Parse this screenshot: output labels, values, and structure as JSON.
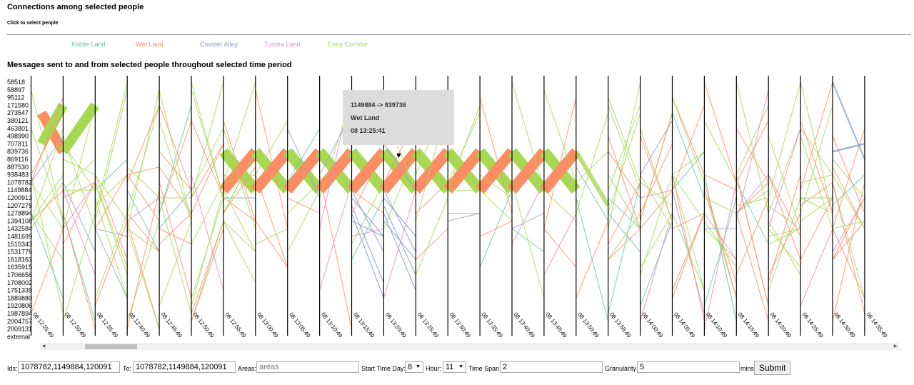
{
  "header": {
    "title": "Connections among selected people",
    "subtitle": "Click to select people",
    "chart_title": "Messages sent to and from selected people throughout selected time period"
  },
  "legend": [
    {
      "label": "Kiddie Land",
      "color": "#66c2a5"
    },
    {
      "label": "Wet Land",
      "color": "#fc8d62"
    },
    {
      "label": "Coaster Alley",
      "color": "#8da0cb"
    },
    {
      "label": "Tundra Land",
      "color": "#e78ac3"
    },
    {
      "label": "Entry Corridor",
      "color": "#a6d854"
    }
  ],
  "tooltip": {
    "connection": "1149884 -> 839736",
    "area": "Wet Land",
    "time": "08 13:25:41"
  },
  "chart_data": {
    "type": "parallel-time-axes",
    "title": "Messages sent to and from selected people throughout selected time period",
    "y_categories": [
      "58518",
      "58897",
      "95112",
      "171580",
      "273547",
      "380121",
      "463801",
      "498990",
      "707811",
      "839736",
      "869116",
      "887530",
      "938483",
      "1078782",
      "1149884",
      "1200913",
      "1207278",
      "1278894",
      "1394108",
      "1432584",
      "1481699",
      "1515343",
      "1531776",
      "1618163",
      "1635915",
      "1706656",
      "1708002",
      "1751339",
      "1889880",
      "1920806",
      "1987894",
      "2004757",
      "2009131",
      "external"
    ],
    "time_axes": [
      "08 12:25:49",
      "08 12:30:49",
      "08 12:35:49",
      "08 12:40:49",
      "08 12:45:49",
      "08 12:50:49",
      "08 12:55:49",
      "08 13:00:49",
      "08 13:05:49",
      "08 13:10:49",
      "08 13:15:49",
      "08 13:20:49",
      "08 13:25:49",
      "08 13:30:49",
      "08 13:35:49",
      "08 13:40:49",
      "08 13:45:49",
      "08 13:50:49",
      "08 13:55:49",
      "08 14:00:49",
      "08 14:05:49",
      "08 14:10:49",
      "08 14:15:49",
      "08 14:20:49",
      "08 14:25:49",
      "08 14:30:49",
      "08 14:35:49"
    ],
    "series": [
      {
        "name": "Wet Land",
        "color": "#fc8d62"
      },
      {
        "name": "Entry Corridor",
        "color": "#a6d854"
      },
      {
        "name": "Kiddie Land",
        "color": "#66c2a5"
      },
      {
        "name": "Coaster Alley",
        "color": "#8da0cb"
      },
      {
        "name": "Tundra Land",
        "color": "#e78ac3"
      }
    ]
  },
  "form": {
    "ids_label": "Ids:",
    "ids_value": "1078782,1149884,120091",
    "to_label": "To:",
    "to_value": "1078782,1149884,120091",
    "areas_label": "Areas:",
    "areas_placeholder": "areas",
    "start_day_label": "Start Time Day:",
    "start_day_value": "8",
    "hour_label": "Hour:",
    "hour_value": "11",
    "time_span_label": "Time Span",
    "time_span_value": "2",
    "granularity_label": "Granularity",
    "granularity_value": "5",
    "mins_label": "mins",
    "submit_label": "Submit"
  }
}
